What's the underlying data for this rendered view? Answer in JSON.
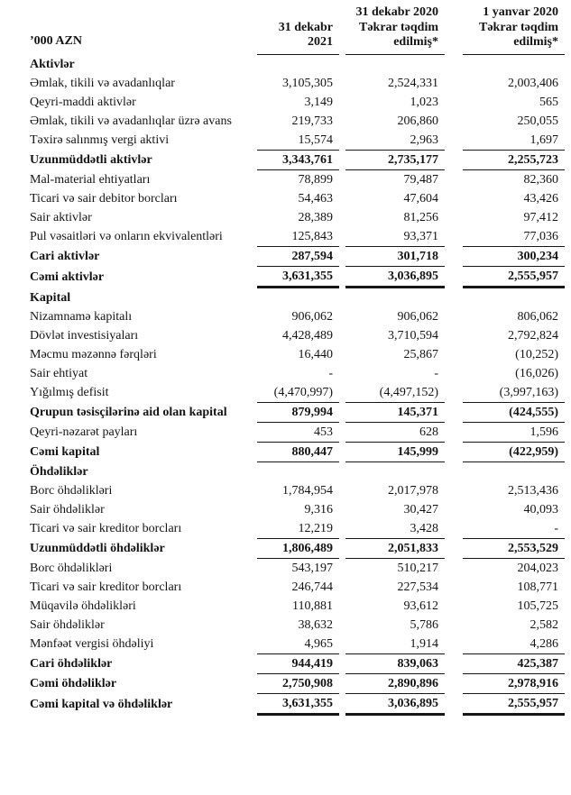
{
  "header": {
    "unit": "’000 AZN",
    "cols": [
      {
        "lines": [
          "31 dekabr",
          "2021"
        ]
      },
      {
        "lines": [
          "31 dekabr 2020",
          "Təkrar təqdim",
          "edilmiş*"
        ]
      },
      {
        "lines": [
          "1 yanvar 2020",
          "Təkrar təqdim",
          "edilmiş*"
        ]
      }
    ]
  },
  "rows": [
    {
      "type": "gap",
      "size": "xs"
    },
    {
      "type": "section",
      "label": "Aktivlər"
    },
    {
      "type": "item",
      "label": "Əmlak, tikili və avadanlıqlar",
      "values": [
        "3,105,305",
        "2,524,331",
        "2,003,406"
      ]
    },
    {
      "type": "item",
      "label": "Qeyri-maddi aktivlər",
      "values": [
        "3,149",
        "1,023",
        "565"
      ]
    },
    {
      "type": "item",
      "label": "Əmlak, tikili və avadanlıqlar üzrə avans",
      "values": [
        "219,733",
        "206,860",
        "250,055"
      ]
    },
    {
      "type": "item",
      "label": "Təxirə salınmış vergi aktivi",
      "values": [
        "15,574",
        "2,963",
        "1,697"
      ],
      "rule": "thin"
    },
    {
      "type": "total",
      "label": "Uzunmüddətli aktivlər",
      "values": [
        "3,343,761",
        "2,735,177",
        "2,255,723"
      ],
      "rule": "thin"
    },
    {
      "type": "gap",
      "size": "sm"
    },
    {
      "type": "item",
      "label": "Mal-material ehtiyatları",
      "values": [
        "78,899",
        "79,487",
        "82,360"
      ]
    },
    {
      "type": "item",
      "label": "Ticari və sair debitor borcları",
      "values": [
        "54,463",
        "47,604",
        "43,426"
      ]
    },
    {
      "type": "item",
      "label": "Sair aktivlər",
      "values": [
        "28,389",
        "81,256",
        "97,412"
      ]
    },
    {
      "type": "item",
      "label": "Pul vəsaitləri və onların ekvivalentləri",
      "values": [
        "125,843",
        "93,371",
        "77,036"
      ],
      "rule": "thin"
    },
    {
      "type": "total",
      "label": "Cari aktivlər",
      "values": [
        "287,594",
        "301,718",
        "300,234"
      ],
      "rule": "thin"
    },
    {
      "type": "total",
      "label": "Cəmi aktivlər",
      "values": [
        "3,631,355",
        "3,036,895",
        "2,555,957"
      ],
      "rule": "thick"
    },
    {
      "type": "gap",
      "size": "lg"
    },
    {
      "type": "section",
      "label": "Kapital"
    },
    {
      "type": "item",
      "label": "Nizamnamə kapitalı",
      "values": [
        "906,062",
        "906,062",
        "806,062"
      ]
    },
    {
      "type": "item",
      "label": "Dövlət investisiyaları",
      "values": [
        "4,428,489",
        "3,710,594",
        "2,792,824"
      ]
    },
    {
      "type": "item",
      "label": "Məcmu məzənnə fərqləri",
      "values": [
        "16,440",
        "25,867",
        "(10,252)"
      ]
    },
    {
      "type": "item",
      "label": "Sair ehtiyat",
      "values": [
        "-",
        "-",
        "(16,026)"
      ]
    },
    {
      "type": "item",
      "label": "Yığılmış defisit",
      "values": [
        "(4,470,997)",
        "(4,497,152)",
        "(3,997,163)"
      ],
      "rule": "thin"
    },
    {
      "type": "total",
      "label": "Qrupun təsisçilərinə aid olan kapital",
      "values": [
        "879,994",
        "145,371",
        "(424,555)"
      ],
      "rule": "thin"
    },
    {
      "type": "item",
      "label": "Qeyri-nəzarət payları",
      "values": [
        "453",
        "628",
        "1,596"
      ],
      "rule": "thin"
    },
    {
      "type": "total",
      "label": "Cəmi kapital",
      "values": [
        "880,447",
        "145,999",
        "(422,959)"
      ],
      "rule": "thin"
    },
    {
      "type": "gap",
      "size": "lg"
    },
    {
      "type": "section",
      "label": "Öhdəliklər"
    },
    {
      "type": "item",
      "label": "Borc öhdəlikləri",
      "values": [
        "1,784,954",
        "2,017,978",
        "2,513,436"
      ]
    },
    {
      "type": "item",
      "label": "Sair öhdəliklər",
      "values": [
        "9,316",
        "30,427",
        "40,093"
      ]
    },
    {
      "type": "item",
      "label": "Ticari və sair kreditor borcları",
      "values": [
        "12,219",
        "3,428",
        "-"
      ],
      "rule": "thin"
    },
    {
      "type": "total",
      "label": "Uzunmüddətli öhdəliklər",
      "values": [
        "1,806,489",
        "2,051,833",
        "2,553,529"
      ],
      "rule": "thin"
    },
    {
      "type": "gap",
      "size": "lg"
    },
    {
      "type": "item",
      "label": "Borc öhdəlikləri",
      "values": [
        "543,197",
        "510,217",
        "204,023"
      ]
    },
    {
      "type": "item",
      "label": "Ticari və sair kreditor borcları",
      "values": [
        "246,744",
        "227,534",
        "108,771"
      ]
    },
    {
      "type": "item",
      "label": "Müqavilə öhdəlikləri",
      "values": [
        "110,881",
        "93,612",
        "105,725"
      ]
    },
    {
      "type": "item",
      "label": "Sair öhdəliklər",
      "values": [
        "38,632",
        "5,786",
        "2,582"
      ]
    },
    {
      "type": "item",
      "label": "Mənfəət vergisi öhdəliyi",
      "values": [
        "4,965",
        "1,914",
        "4,286"
      ],
      "rule": "thin"
    },
    {
      "type": "total",
      "label": "Cari öhdəliklər",
      "values": [
        "944,419",
        "839,063",
        "425,387"
      ],
      "rule": "thin"
    },
    {
      "type": "total",
      "label": "Cəmi öhdəliklər",
      "values": [
        "2,750,908",
        "2,890,896",
        "2,978,916"
      ],
      "rule": "thin"
    },
    {
      "type": "total",
      "label": "Cəmi kapital və öhdəliklər",
      "values": [
        "3,631,355",
        "3,036,895",
        "2,555,957"
      ],
      "rule": "thick"
    }
  ]
}
